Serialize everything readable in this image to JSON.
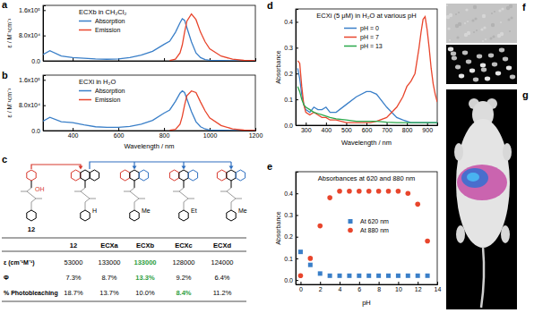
{
  "panel_labels": [
    "a",
    "b",
    "c",
    "d",
    "e",
    "f",
    "g"
  ],
  "chart_data": [
    {
      "type": "line",
      "title": "ECXb in CH₂Cl₂",
      "ylabel": "ε / M⁻¹cm⁻¹",
      "x": [
        270,
        300,
        350,
        400,
        450,
        500,
        550,
        600,
        650,
        700,
        750,
        800,
        825,
        850,
        870,
        880,
        890,
        900,
        920,
        940,
        960,
        980,
        1000,
        1050,
        1100,
        1150,
        1200
      ],
      "series": [
        {
          "name": "Absorption",
          "color": "#3a7fc8",
          "values": [
            20000,
            32000,
            15000,
            10000,
            8000,
            6000,
            5000,
            6000,
            10000,
            18000,
            30000,
            52000,
            62000,
            90000,
            120000,
            133000,
            128000,
            105000,
            60000,
            25000,
            10000,
            4000,
            2000,
            1000,
            0,
            0,
            0
          ]
        },
        {
          "name": "Emission",
          "color": "#e8452c",
          "values": [
            null,
            null,
            null,
            null,
            null,
            null,
            null,
            null,
            null,
            null,
            null,
            null,
            1000,
            5000,
            25000,
            50000,
            90000,
            125000,
            148000,
            130000,
            90000,
            60000,
            38000,
            15000,
            5000,
            1500,
            500
          ]
        }
      ],
      "xlim": [
        270,
        1200
      ],
      "xticks": [
        400,
        600,
        800,
        1000,
        1200
      ],
      "ylim": [
        0,
        175000
      ],
      "yticks": [
        {
          "value": 0,
          "label": "0.0"
        },
        {
          "value": 80000,
          "label": "8.0x10⁴"
        },
        {
          "value": 160000,
          "label": "1.6x10⁵"
        }
      ],
      "legend": "upper left",
      "tick_labels": "y"
    },
    {
      "type": "line",
      "title": "ECXi in H₂O",
      "xlabel": "Wavelength / nm",
      "ylabel": "ε / M⁻¹cm⁻¹",
      "x": [
        270,
        300,
        350,
        400,
        450,
        500,
        550,
        600,
        650,
        700,
        750,
        800,
        825,
        850,
        870,
        880,
        890,
        900,
        920,
        940,
        960,
        980,
        1000,
        1050,
        1100,
        1150,
        1200
      ],
      "series": [
        {
          "name": "Absorption",
          "color": "#3a7fc8",
          "values": [
            30000,
            42000,
            28000,
            25000,
            18000,
            12000,
            10000,
            10000,
            13000,
            20000,
            32000,
            55000,
            65000,
            92000,
            118000,
            125000,
            120000,
            100000,
            60000,
            28000,
            12000,
            5000,
            2000,
            1000,
            0,
            0,
            0
          ]
        },
        {
          "name": "Emission",
          "color": "#e8452c",
          "values": [
            null,
            null,
            null,
            null,
            null,
            null,
            null,
            null,
            null,
            null,
            null,
            null,
            1000,
            4000,
            20000,
            45000,
            80000,
            110000,
            125000,
            120000,
            90000,
            62000,
            40000,
            16000,
            5000,
            1500,
            500
          ]
        }
      ],
      "xlim": [
        270,
        1200
      ],
      "xticks": [
        400,
        600,
        800,
        1000,
        1200
      ],
      "ylim": [
        0,
        175000
      ],
      "yticks": [
        {
          "value": 0,
          "label": "0.0"
        },
        {
          "value": 80000,
          "label": "8.0x10⁴"
        },
        {
          "value": 160000,
          "label": "1.6x10⁵"
        }
      ],
      "legend": "upper left"
    },
    {
      "type": "line",
      "title": "ECXi (5 μM) in H₂O at various pH",
      "xlabel": "Wavelength / nm",
      "ylabel": "Absorbance",
      "x": [
        260,
        270,
        280,
        290,
        300,
        320,
        340,
        360,
        380,
        400,
        420,
        450,
        500,
        550,
        600,
        620,
        650,
        700,
        750,
        780,
        800,
        820,
        840,
        860,
        870,
        880,
        890,
        900,
        910,
        920,
        930,
        940,
        950
      ],
      "series": [
        {
          "name": "pH = 0",
          "color": "#3a7fc8",
          "values": [
            0.22,
            0.18,
            0.12,
            0.08,
            0.06,
            0.05,
            0.07,
            0.06,
            0.06,
            0.07,
            0.05,
            0.05,
            0.08,
            0.11,
            0.13,
            0.13,
            0.12,
            0.07,
            0.03,
            0.02,
            0.015,
            0.01,
            0.01,
            0.01,
            0.01,
            0.01,
            0.01,
            0.01,
            0.01,
            0.01,
            0.01,
            0.01,
            0.01
          ]
        },
        {
          "name": "pH = 7",
          "color": "#e8452c",
          "values": [
            0.25,
            0.24,
            0.15,
            0.08,
            0.05,
            0.04,
            0.05,
            0.04,
            0.03,
            0.03,
            0.02,
            0.02,
            0.01,
            0.01,
            0.01,
            0.01,
            0.015,
            0.03,
            0.07,
            0.11,
            0.15,
            0.17,
            0.2,
            0.3,
            0.36,
            0.41,
            0.42,
            0.37,
            0.3,
            0.22,
            0.16,
            0.12,
            0.09
          ]
        },
        {
          "name": "pH = 13",
          "color": "#2aa84a",
          "values": [
            0.15,
            0.13,
            0.1,
            0.08,
            0.07,
            0.06,
            0.05,
            0.045,
            0.04,
            0.035,
            0.03,
            0.025,
            0.02,
            0.015,
            0.015,
            0.015,
            0.015,
            0.012,
            0.01,
            0.01,
            0.01,
            0.01,
            0.01,
            0.01,
            0.01,
            0.01,
            0.01,
            0.01,
            0.01,
            0.01,
            0.01,
            0.01,
            0.01
          ]
        }
      ],
      "xlim": [
        250,
        950
      ],
      "xticks": [
        300,
        400,
        500,
        600,
        700,
        800,
        900
      ],
      "ylim": [
        0,
        0.45
      ],
      "yticks": [
        {
          "value": 0,
          "label": "0.0"
        },
        {
          "value": 0.1,
          "label": "0.1"
        },
        {
          "value": 0.2,
          "label": "0.2"
        },
        {
          "value": 0.3,
          "label": "0.3"
        },
        {
          "value": 0.4,
          "label": "0.4"
        }
      ],
      "legend": "upper center"
    },
    {
      "type": "scatter",
      "title": "Absorbances at 620 and 880 nm",
      "xlabel": "pH",
      "ylabel": "Absorbance",
      "x": [
        0,
        1,
        2,
        3,
        4,
        5,
        6,
        7,
        8,
        9,
        10,
        11,
        12,
        13
      ],
      "series": [
        {
          "name": "At 620 nm",
          "color": "#3a7fc8",
          "marker": "square",
          "values": [
            0.13,
            0.07,
            0.03,
            0.02,
            0.02,
            0.02,
            0.02,
            0.02,
            0.02,
            0.02,
            0.02,
            0.02,
            0.02,
            0.02
          ]
        },
        {
          "name": "At 880 nm",
          "color": "#e8452c",
          "marker": "circle",
          "values": [
            0.02,
            0.1,
            0.25,
            0.38,
            0.41,
            0.41,
            0.41,
            0.41,
            0.41,
            0.41,
            0.41,
            0.4,
            0.35,
            0.18
          ]
        }
      ],
      "xlim": [
        -0.5,
        14
      ],
      "xticks": [
        0,
        2,
        4,
        6,
        8,
        10,
        12,
        14
      ],
      "ylim": [
        -0.02,
        0.5
      ],
      "yticks": [
        {
          "value": 0,
          "label": "0.0"
        },
        {
          "value": 0.1,
          "label": "0.1"
        },
        {
          "value": 0.2,
          "label": "0.2"
        },
        {
          "value": 0.3,
          "label": "0.3"
        },
        {
          "value": 0.4,
          "label": "0.4"
        }
      ],
      "legend": "center"
    }
  ],
  "structures": [
    {
      "label": "12",
      "group": "OH"
    },
    {
      "group": "H"
    },
    {
      "group": "Me"
    },
    {
      "group": "Et"
    },
    {
      "group": "Me"
    }
  ],
  "table": {
    "header": [
      "12",
      "ECXa",
      "ECXb",
      "ECXc",
      "ECXd"
    ],
    "rows": [
      {
        "header": "ε (cm⁻¹M⁻¹)",
        "cells": [
          "53000",
          "133000",
          "133000",
          "128000",
          "124000"
        ],
        "colors": [
          null,
          null,
          "#2e9e3e",
          null,
          null
        ]
      },
      {
        "header": "Φ",
        "cells": [
          "7.3%",
          "8.7%",
          "13.3%",
          "9.2%",
          "6.4%"
        ],
        "colors": [
          null,
          null,
          "#2e9e3e",
          null,
          null
        ]
      },
      {
        "header": "% Photobleaching",
        "cells": [
          "18.7%",
          "13.7%",
          "10.0%",
          "8.4%",
          "11.2%"
        ],
        "colors": [
          null,
          null,
          null,
          "#2e9e3e",
          null
        ]
      }
    ]
  }
}
